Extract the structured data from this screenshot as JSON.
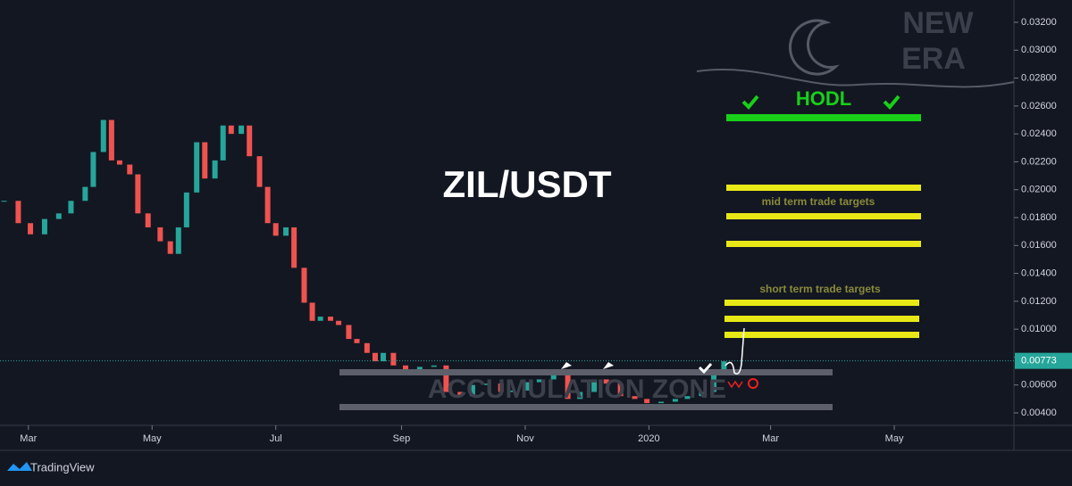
{
  "chart_data": {
    "type": "candlestick",
    "title": "ZIL/USDT",
    "x": [
      -12,
      -5,
      1,
      8,
      15,
      21,
      28,
      32,
      37,
      41,
      45,
      50,
      54,
      59,
      65,
      70,
      74,
      78,
      83,
      87,
      92,
      96,
      100,
      105,
      109,
      114,
      118,
      122,
      127,
      131,
      136,
      140,
      144,
      149,
      153,
      158,
      162,
      167,
      171,
      175,
      180,
      186,
      193,
      200,
      206,
      213,
      219,
      226,
      233,
      239,
      246,
      252,
      259,
      266,
      272,
      279,
      285,
      292,
      299,
      305,
      312,
      319,
      325,
      332,
      338,
      343
    ],
    "values": [
      0.0192,
      0.0176,
      0.0168,
      0.0179,
      0.0183,
      0.0192,
      0.0202,
      0.0227,
      0.025,
      0.0221,
      0.0218,
      0.0211,
      0.0183,
      0.0173,
      0.0163,
      0.0154,
      0.0173,
      0.0198,
      0.0234,
      0.0208,
      0.0221,
      0.0246,
      0.024,
      0.0246,
      0.0224,
      0.0202,
      0.0176,
      0.0167,
      0.0173,
      0.0144,
      0.0119,
      0.0106,
      0.0109,
      0.0106,
      0.0103,
      0.0093,
      0.009,
      0.0083,
      0.0077,
      0.0083,
      0.0074,
      0.0071,
      0.0073,
      0.0074,
      0.0055,
      0.0052,
      0.006,
      0.0061,
      0.0055,
      0.0056,
      0.0062,
      0.0064,
      0.0067,
      0.005,
      0.0055,
      0.0064,
      0.0061,
      0.0052,
      0.005,
      0.0047,
      0.0048,
      0.005,
      0.0052,
      0.0055,
      0.0067,
      0.0077
    ],
    "up_color": "#26a69a",
    "down_color": "#ef5350",
    "xlim": [
      -14,
      486
    ],
    "xticks": [
      {
        "value": 0,
        "label": "Mar"
      },
      {
        "value": 61,
        "label": "May"
      },
      {
        "value": 122,
        "label": "Jul"
      },
      {
        "value": 184,
        "label": "Sep"
      },
      {
        "value": 245,
        "label": "Nov"
      },
      {
        "value": 306,
        "label": "2020"
      },
      {
        "value": 366,
        "label": "Mar"
      },
      {
        "value": 427,
        "label": "May"
      }
    ],
    "ylim": [
      0.004,
      0.032
    ],
    "yticks": [
      {
        "value": 0.004,
        "label": "0.00400"
      },
      {
        "value": 0.006,
        "label": "0.00600"
      },
      {
        "value": 0.008,
        "label": "0.00800"
      },
      {
        "value": 0.01,
        "label": "0.01000"
      },
      {
        "value": 0.012,
        "label": "0.01200"
      },
      {
        "value": 0.014,
        "label": "0.01400"
      },
      {
        "value": 0.016,
        "label": "0.01600"
      },
      {
        "value": 0.018,
        "label": "0.01800"
      },
      {
        "value": 0.02,
        "label": "0.02000"
      },
      {
        "value": 0.022,
        "label": "0.02200"
      },
      {
        "value": 0.024,
        "label": "0.02400"
      },
      {
        "value": 0.026,
        "label": "0.02600"
      },
      {
        "value": 0.028,
        "label": "0.02800"
      },
      {
        "value": 0.03,
        "label": "0.03000"
      },
      {
        "value": 0.032,
        "label": "0.03200"
      }
    ],
    "last_price": {
      "value": 0.00773,
      "label": "0.00773"
    },
    "hodl_label": "HODL",
    "mid_label": "mid term trade targets",
    "short_label": "short term trade targets",
    "zone_label": "ACCUMULATION ZONE",
    "watermark": [
      "NEW",
      "ERA"
    ],
    "brand": "TradingView"
  }
}
